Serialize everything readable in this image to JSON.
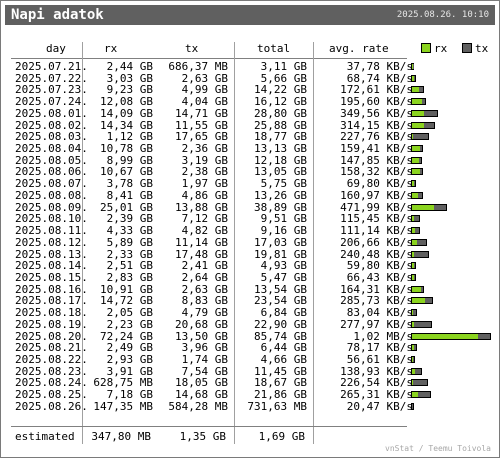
{
  "title": "Napi adatok",
  "timestamp": "2025.08.26. 10:10",
  "headers": {
    "day": "day",
    "rx": "rx",
    "tx": "tx",
    "total": "total",
    "avg_rate": "avg. rate"
  },
  "legend": {
    "rx": "rx",
    "tx": "tx"
  },
  "colors": {
    "rx": "#8bd41f",
    "tx": "#606060",
    "title_bg": "#606060"
  },
  "rows": [
    {
      "day": "2025.07.21.",
      "rx": "2,44 GB",
      "tx": "686,37 MB",
      "total": "3,11 GB",
      "avg": "37,78 KB/s",
      "rx_gb": 2.44,
      "tx_gb": 0.686
    },
    {
      "day": "2025.07.22.",
      "rx": "3,03 GB",
      "tx": "2,63 GB",
      "total": "5,66 GB",
      "avg": "68,74 KB/s",
      "rx_gb": 3.03,
      "tx_gb": 2.63
    },
    {
      "day": "2025.07.23.",
      "rx": "9,23 GB",
      "tx": "4,99 GB",
      "total": "14,22 GB",
      "avg": "172,61 KB/s",
      "rx_gb": 9.23,
      "tx_gb": 4.99
    },
    {
      "day": "2025.07.24.",
      "rx": "12,08 GB",
      "tx": "4,04 GB",
      "total": "16,12 GB",
      "avg": "195,60 KB/s",
      "rx_gb": 12.08,
      "tx_gb": 4.04
    },
    {
      "day": "2025.08.01.",
      "rx": "14,09 GB",
      "tx": "14,71 GB",
      "total": "28,80 GB",
      "avg": "349,56 KB/s",
      "rx_gb": 14.09,
      "tx_gb": 14.71
    },
    {
      "day": "2025.08.02.",
      "rx": "14,34 GB",
      "tx": "11,55 GB",
      "total": "25,88 GB",
      "avg": "314,15 KB/s",
      "rx_gb": 14.34,
      "tx_gb": 11.55
    },
    {
      "day": "2025.08.03.",
      "rx": "1,12 GB",
      "tx": "17,65 GB",
      "total": "18,77 GB",
      "avg": "227,76 KB/s",
      "rx_gb": 1.12,
      "tx_gb": 17.65
    },
    {
      "day": "2025.08.04.",
      "rx": "10,78 GB",
      "tx": "2,36 GB",
      "total": "13,13 GB",
      "avg": "159,41 KB/s",
      "rx_gb": 10.78,
      "tx_gb": 2.36
    },
    {
      "day": "2025.08.05.",
      "rx": "8,99 GB",
      "tx": "3,19 GB",
      "total": "12,18 GB",
      "avg": "147,85 KB/s",
      "rx_gb": 8.99,
      "tx_gb": 3.19
    },
    {
      "day": "2025.08.06.",
      "rx": "10,67 GB",
      "tx": "2,38 GB",
      "total": "13,05 GB",
      "avg": "158,32 KB/s",
      "rx_gb": 10.67,
      "tx_gb": 2.38
    },
    {
      "day": "2025.08.07.",
      "rx": "3,78 GB",
      "tx": "1,97 GB",
      "total": "5,75 GB",
      "avg": "69,80 KB/s",
      "rx_gb": 3.78,
      "tx_gb": 1.97
    },
    {
      "day": "2025.08.08.",
      "rx": "8,41 GB",
      "tx": "4,86 GB",
      "total": "13,26 GB",
      "avg": "160,97 KB/s",
      "rx_gb": 8.41,
      "tx_gb": 4.86
    },
    {
      "day": "2025.08.09.",
      "rx": "25,01 GB",
      "tx": "13,88 GB",
      "total": "38,89 GB",
      "avg": "471,99 KB/s",
      "rx_gb": 25.01,
      "tx_gb": 13.88
    },
    {
      "day": "2025.08.10.",
      "rx": "2,39 GB",
      "tx": "7,12 GB",
      "total": "9,51 GB",
      "avg": "115,45 KB/s",
      "rx_gb": 2.39,
      "tx_gb": 7.12
    },
    {
      "day": "2025.08.11.",
      "rx": "4,33 GB",
      "tx": "4,82 GB",
      "total": "9,16 GB",
      "avg": "111,14 KB/s",
      "rx_gb": 4.33,
      "tx_gb": 4.82
    },
    {
      "day": "2025.08.12.",
      "rx": "5,89 GB",
      "tx": "11,14 GB",
      "total": "17,03 GB",
      "avg": "206,66 KB/s",
      "rx_gb": 5.89,
      "tx_gb": 11.14
    },
    {
      "day": "2025.08.13.",
      "rx": "2,33 GB",
      "tx": "17,48 GB",
      "total": "19,81 GB",
      "avg": "240,48 KB/s",
      "rx_gb": 2.33,
      "tx_gb": 17.48
    },
    {
      "day": "2025.08.14.",
      "rx": "2,51 GB",
      "tx": "2,41 GB",
      "total": "4,93 GB",
      "avg": "59,80 KB/s",
      "rx_gb": 2.51,
      "tx_gb": 2.41
    },
    {
      "day": "2025.08.15.",
      "rx": "2,83 GB",
      "tx": "2,64 GB",
      "total": "5,47 GB",
      "avg": "66,43 KB/s",
      "rx_gb": 2.83,
      "tx_gb": 2.64
    },
    {
      "day": "2025.08.16.",
      "rx": "10,91 GB",
      "tx": "2,63 GB",
      "total": "13,54 GB",
      "avg": "164,31 KB/s",
      "rx_gb": 10.91,
      "tx_gb": 2.63
    },
    {
      "day": "2025.08.17.",
      "rx": "14,72 GB",
      "tx": "8,83 GB",
      "total": "23,54 GB",
      "avg": "285,73 KB/s",
      "rx_gb": 14.72,
      "tx_gb": 8.83
    },
    {
      "day": "2025.08.18.",
      "rx": "2,05 GB",
      "tx": "4,79 GB",
      "total": "6,84 GB",
      "avg": "83,04 KB/s",
      "rx_gb": 2.05,
      "tx_gb": 4.79
    },
    {
      "day": "2025.08.19.",
      "rx": "2,23 GB",
      "tx": "20,68 GB",
      "total": "22,90 GB",
      "avg": "277,97 KB/s",
      "rx_gb": 2.23,
      "tx_gb": 20.68
    },
    {
      "day": "2025.08.20.",
      "rx": "72,24 GB",
      "tx": "13,50 GB",
      "total": "85,74 GB",
      "avg": "1,02 MB/s",
      "rx_gb": 72.24,
      "tx_gb": 13.5
    },
    {
      "day": "2025.08.21.",
      "rx": "2,49 GB",
      "tx": "3,96 GB",
      "total": "6,44 GB",
      "avg": "78,17 KB/s",
      "rx_gb": 2.49,
      "tx_gb": 3.96
    },
    {
      "day": "2025.08.22.",
      "rx": "2,93 GB",
      "tx": "1,74 GB",
      "total": "4,66 GB",
      "avg": "56,61 KB/s",
      "rx_gb": 2.93,
      "tx_gb": 1.74
    },
    {
      "day": "2025.08.23.",
      "rx": "3,91 GB",
      "tx": "7,54 GB",
      "total": "11,45 GB",
      "avg": "138,93 KB/s",
      "rx_gb": 3.91,
      "tx_gb": 7.54
    },
    {
      "day": "2025.08.24.",
      "rx": "628,75 MB",
      "tx": "18,05 GB",
      "total": "18,67 GB",
      "avg": "226,54 KB/s",
      "rx_gb": 0.629,
      "tx_gb": 18.05
    },
    {
      "day": "2025.08.25.",
      "rx": "7,18 GB",
      "tx": "14,68 GB",
      "total": "21,86 GB",
      "avg": "265,31 KB/s",
      "rx_gb": 7.18,
      "tx_gb": 14.68
    },
    {
      "day": "2025.08.26.",
      "rx": "147,35 MB",
      "tx": "584,28 MB",
      "total": "731,63 MB",
      "avg": "20,47 KB/s",
      "rx_gb": 0.147,
      "tx_gb": 0.584
    }
  ],
  "estimated": {
    "label": "estimated",
    "rx": "347,80 MB",
    "tx": "1,35 GB",
    "total": "1,69 GB"
  },
  "credit": "vnStat / Teemu Toivola"
}
